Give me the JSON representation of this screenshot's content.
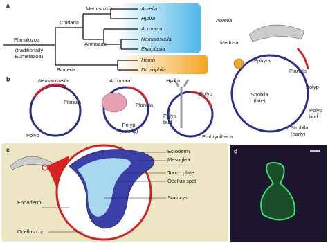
{
  "panel_labels": [
    "a",
    "b",
    "c",
    "d"
  ],
  "tree": {
    "root": "Planulozoa",
    "root_note": [
      "(traditionally",
      "Eumetazoa)"
    ],
    "clades": [
      "Cnidaria",
      "Medusozoa",
      "Anthozoa",
      "Bilateria"
    ],
    "taxa": [
      "Aurelia",
      "Hydra",
      "Acropora",
      "Nematostella",
      "Exaiptasia",
      "Homo",
      "Drosophila"
    ]
  },
  "aurelia_cycle": {
    "title": "Aurelia",
    "medusa": "Medusa",
    "ephyra": "Ephyra",
    "planula": "Planula",
    "polyp": "Polyp",
    "strobila_late": [
      "Strobila",
      "(late)"
    ],
    "polyp_bud": [
      "Polyp",
      "bud"
    ],
    "strobila_early": [
      "Strobila",
      "(early)"
    ]
  },
  "nematostella_cycle": {
    "title": "Nematostella",
    "planula": "Planula",
    "polyp": "Polyp"
  },
  "acropora_cycle": {
    "title": "Acropora",
    "planula": "Planula",
    "polyp": [
      "Polyp",
      "(colony)"
    ]
  },
  "hydra_cycle": {
    "title": "Hydra",
    "polyp": "Polyp",
    "polyp_bud": [
      "Polyp",
      "bud"
    ],
    "embryotheca": "Embryotheca"
  },
  "ocellus": {
    "ectoderm": "Ectoderm",
    "mesoglea": "Mesoglea",
    "touch_plate": "Touch plate",
    "ocellus_spot": "Ocellus spot",
    "statocyst": "Statocyst",
    "endoderm": "Endoderm",
    "ocellus_cup": "Ocellus cup"
  }
}
